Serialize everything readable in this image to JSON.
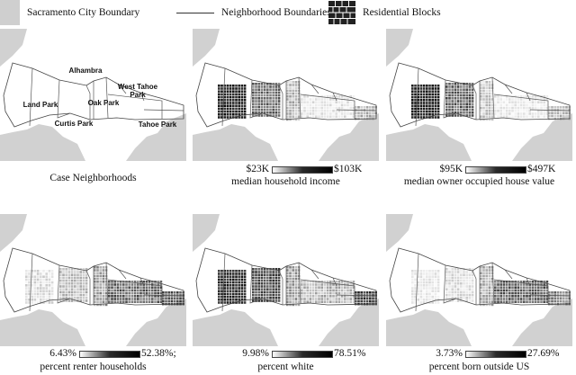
{
  "legend": {
    "city_boundary": "Sacramento City Boundary",
    "neighborhood_boundaries": "Neighborhood Boundaries",
    "residential_blocks": "Residential Blocks"
  },
  "neighborhoods": [
    "Alhambra",
    "Land Park",
    "Oak Park",
    "West Tahoe Park",
    "Curtis Park",
    "Tahoe Park"
  ],
  "panels": [
    {
      "id": "case",
      "caption": "Case Neighborhoods",
      "min_label": "",
      "max_label": ""
    },
    {
      "id": "income",
      "caption": "median household income",
      "min_label": "$23K",
      "max_label": "$103K"
    },
    {
      "id": "house",
      "caption": "median owner occupied house value",
      "min_label": "$95K",
      "max_label": "$497K"
    },
    {
      "id": "renter",
      "caption": "percent renter households",
      "min_label": "6.43%",
      "max_label": "52.38%;"
    },
    {
      "id": "white",
      "caption": "percent white",
      "min_label": "9.98%",
      "max_label": "78.51%"
    },
    {
      "id": "foreign",
      "caption": "percent born outside US",
      "min_label": "3.73%",
      "max_label": "27.69%"
    }
  ],
  "colors": {
    "background_gray": "#d1d1d1",
    "city_white": "#ffffff",
    "dark_block": "#1a1a1a"
  }
}
